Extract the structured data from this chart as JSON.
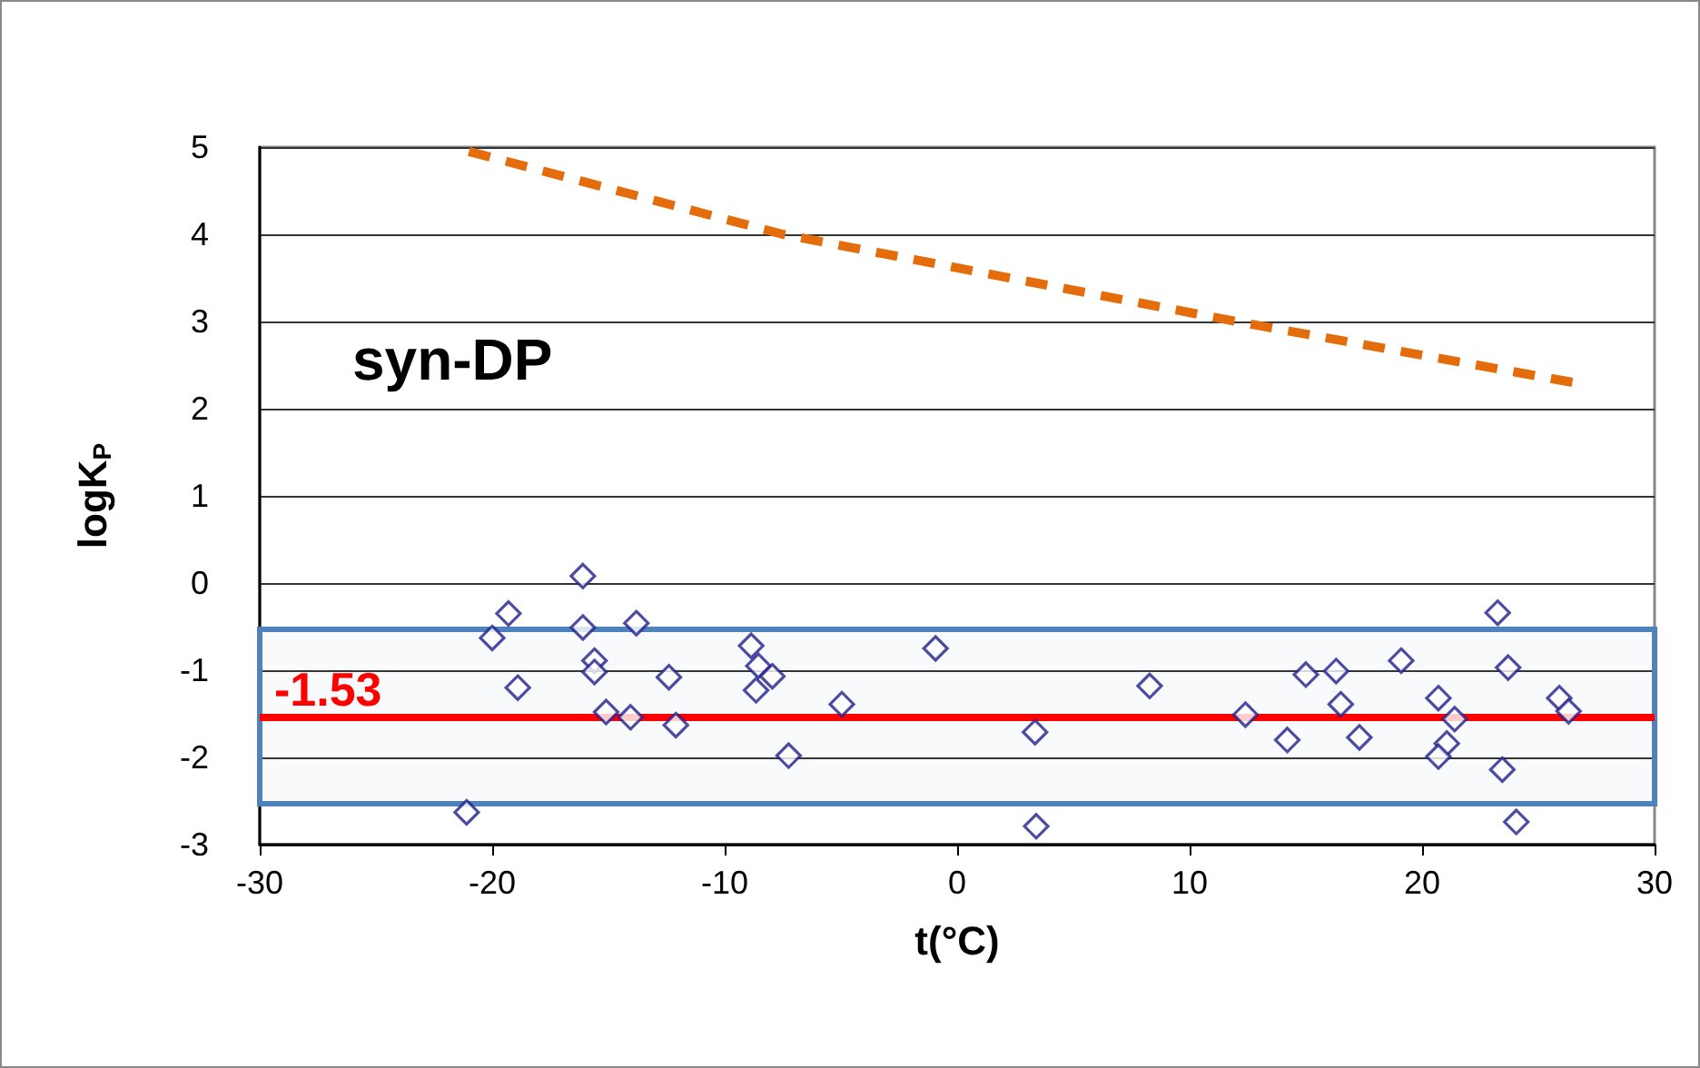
{
  "chart_data": {
    "type": "scatter",
    "xlabel": "t(°C)",
    "ylabel": "logK$_{P}$",
    "annotations": [
      "syn-DP"
    ],
    "xlim": [
      -30,
      30
    ],
    "xticks": [
      -30,
      -20,
      -10,
      0,
      10,
      20,
      30
    ],
    "ylim": [
      -3,
      5
    ],
    "yticks": [
      -3,
      -2,
      -1,
      0,
      1,
      2,
      3,
      4,
      5
    ],
    "grid": "y",
    "marker": "diamond",
    "series": [
      {
        "color": "#1f1f8c",
        "x": [
          -21.1,
          -20.0,
          -19.3,
          -18.9,
          -16.1,
          -16.1,
          -15.6,
          -15.6,
          -15.1,
          -14.05,
          -13.8,
          -12.4,
          -12.1,
          -8.86,
          -8.55,
          -8.65,
          -7.95,
          -7.25,
          -4.96,
          -0.93,
          3.35,
          3.4,
          8.28,
          12.4,
          14.2,
          15.0,
          16.3,
          16.5,
          17.3,
          19.1,
          20.7,
          21.4,
          21.06,
          20.7,
          23.25,
          23.7,
          23.45,
          24.05,
          25.9,
          26.3
        ],
        "values": [
          -2.63,
          -0.63,
          -0.35,
          -1.2,
          0.08,
          -0.51,
          -0.89,
          -1.02,
          -1.48,
          -1.54,
          -0.46,
          -1.08,
          -1.63,
          -0.72,
          -0.95,
          -1.23,
          -1.07,
          -1.98,
          -1.39,
          -0.75,
          -1.71,
          -2.79,
          -1.18,
          -1.51,
          -1.8,
          -1.05,
          -1.01,
          -1.39,
          -1.77,
          -0.89,
          -1.32,
          -1.56,
          -1.84,
          -1.99,
          -0.34,
          -0.97,
          -2.14,
          -2.74,
          -1.32,
          -1.47
        ]
      },
      {
        "type": "line",
        "color": "#e46c0a",
        "line_style": "dashed",
        "marker": "none",
        "x": [
          -21,
          -7.5,
          12,
          26.5
        ],
        "values": [
          4.95,
          4.0,
          3.0,
          2.3
        ]
      }
    ],
    "ref_lines": [
      {
        "axis": "y",
        "value": -1.53,
        "label": "-1.53",
        "color": "#ff0000",
        "line_style": "solid"
      }
    ],
    "bands": [
      {
        "axis": "y",
        "from": -2.53,
        "to": -0.53,
        "color": "#4f81bd"
      }
    ]
  }
}
